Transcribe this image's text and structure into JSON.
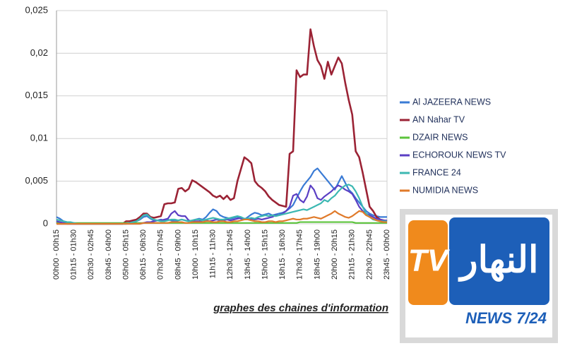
{
  "chart_data": {
    "type": "line",
    "caption": "graphes des chaines d'information",
    "categories": [
      "00h00 - 00h15",
      null,
      null,
      null,
      null,
      "01h15 - 01h30",
      null,
      null,
      null,
      null,
      "02h30 - 02h45",
      null,
      null,
      null,
      null,
      "03h45 - 04h00",
      null,
      null,
      null,
      null,
      "05h00 - 05h15",
      null,
      null,
      null,
      null,
      "06h15 - 06h30",
      null,
      null,
      null,
      null,
      "07h30 - 07h45",
      null,
      null,
      null,
      null,
      "08h45 - 09h00",
      null,
      null,
      null,
      null,
      "10h00 - 10h15",
      null,
      null,
      null,
      null,
      "11h15 - 11h30",
      null,
      null,
      null,
      null,
      "12h30 - 12h45",
      null,
      null,
      null,
      null,
      "13h45 - 14h00",
      null,
      null,
      null,
      null,
      "15h00 - 15h15",
      null,
      null,
      null,
      null,
      "16h15 - 16h30",
      null,
      null,
      null,
      null,
      "17h30 - 17h45",
      null,
      null,
      null,
      null,
      "18h45 - 19h00",
      null,
      null,
      null,
      null,
      "20h00 - 20h15",
      null,
      null,
      null,
      null,
      "21h15 - 21h30",
      null,
      null,
      null,
      null,
      "22h30 - 22h45",
      null,
      null,
      null,
      null,
      "23h45 - 00h00"
    ],
    "ylim": [
      0,
      0.025
    ],
    "yticks": [
      0,
      {
        "value": 0.005,
        "label": "0,005"
      },
      {
        "value": 0.01,
        "label": "0,01"
      },
      {
        "value": 0.015,
        "label": "0,015"
      },
      {
        "value": 0.02,
        "label": "0,02"
      },
      {
        "value": 0.025,
        "label": "0,025"
      }
    ],
    "grid": true,
    "legend": "right",
    "series": [
      {
        "name": "Al JAZEERA NEWS",
        "color": "#3a7bd5",
        "values": [
          0.0008,
          0.0006,
          0.0003,
          0.0002,
          0.0001,
          0,
          0,
          0,
          0,
          0,
          0,
          0,
          0,
          0,
          0,
          0,
          0,
          0,
          0,
          0,
          0,
          0.0001,
          0.0002,
          0.0003,
          0.0005,
          0.0008,
          0.0009,
          0.0006,
          0.0004,
          0.0004,
          0.0005,
          0.0004,
          0.0005,
          0.0004,
          0.0003,
          0.0004,
          0.0005,
          0.0004,
          0.0003,
          0.0004,
          0.0005,
          0.0006,
          0.0005,
          0.0008,
          0.0013,
          0.0017,
          0.0015,
          0.001,
          0.0008,
          0.0007,
          0.0006,
          0.0007,
          0.0008,
          0.0006,
          0.0005,
          0.0008,
          0.0011,
          0.0013,
          0.0012,
          0.001,
          0.0011,
          0.0012,
          0.001,
          0.0011,
          0.0012,
          0.0013,
          0.0015,
          0.0018,
          0.0022,
          0.003,
          0.0038,
          0.0045,
          0.005,
          0.0055,
          0.0062,
          0.0065,
          0.006,
          0.0055,
          0.005,
          0.0045,
          0.004,
          0.0048,
          0.0056,
          0.0048,
          0.004,
          0.0036,
          0.003,
          0.0025,
          0.002,
          0.0015,
          0.0012,
          0.001,
          0.0009,
          0.0008,
          0.0008,
          0.0008
        ]
      },
      {
        "name": "AN Nahar TV",
        "color": "#9b2335",
        "values": [
          0,
          0,
          0,
          0,
          0,
          0,
          0,
          0,
          0,
          0,
          0,
          0,
          0,
          0,
          0,
          0,
          0,
          0,
          0,
          0,
          0.0003,
          0.0003,
          0.0004,
          0.0005,
          0.0008,
          0.0012,
          0.0012,
          0.0008,
          0.0007,
          0.0008,
          0.0009,
          0.0023,
          0.0024,
          0.0024,
          0.0025,
          0.0041,
          0.0042,
          0.0038,
          0.0041,
          0.0051,
          0.0049,
          0.0046,
          0.0043,
          0.004,
          0.0037,
          0.0033,
          0.0031,
          0.0033,
          0.0029,
          0.0033,
          0.0028,
          0.003,
          0.005,
          0.0064,
          0.0078,
          0.0075,
          0.0071,
          0.005,
          0.0045,
          0.0042,
          0.0038,
          0.0032,
          0.0028,
          0.0025,
          0.0022,
          0.0021,
          0.002,
          0.0082,
          0.0085,
          0.018,
          0.0172,
          0.0175,
          0.0175,
          0.0228,
          0.0208,
          0.0192,
          0.0185,
          0.017,
          0.019,
          0.0175,
          0.0185,
          0.0195,
          0.0188,
          0.0165,
          0.0145,
          0.0128,
          0.0085,
          0.0078,
          0.006,
          0.004,
          0.002,
          0.0015,
          0.0008,
          0.0005,
          0.0004,
          0.0003
        ]
      },
      {
        "name": "DZAIR NEWS",
        "color": "#5cc43c",
        "values": [
          0.0001,
          0.0001,
          0.0001,
          0.0001,
          0.0001,
          0.0001,
          0.0001,
          0.0001,
          0.0001,
          0.0001,
          0.0001,
          0.0001,
          0.0001,
          0.0001,
          0.0001,
          0.0001,
          0.0001,
          0.0001,
          0.0001,
          0.0001,
          0.0001,
          0.0001,
          0.0001,
          0.0001,
          0.0001,
          0.0001,
          0.0001,
          0.0001,
          0.0001,
          0.0001,
          0.0001,
          0.0001,
          0.0001,
          0.0001,
          0.0001,
          0.0001,
          0.0001,
          0.0001,
          0.0001,
          0.0001,
          0.0001,
          0.0001,
          0.0001,
          0.0001,
          0.0001,
          0.0001,
          0.0001,
          0.0001,
          0.0001,
          0.0001,
          0.0001,
          0.0001,
          0.0001,
          0.0001,
          0.0001,
          0.0001,
          0.0001,
          0.0001,
          0.0001,
          0.0001,
          0.0001,
          0.0001,
          0.0001,
          0.0001,
          0.0001,
          0.0001,
          0.0001,
          0.0001,
          0.0001,
          0.0001,
          0.0002,
          0.0002,
          0.0002,
          0.0002,
          0.0002,
          0.0002,
          0.0002,
          0.0002,
          0.0002,
          0.0002,
          0.0002,
          0.0002,
          0.0002,
          0.0002,
          0.0002,
          0.0002,
          0.0001,
          0.0001,
          0.0001,
          0.0001,
          0.0001,
          0.0001,
          0.0001,
          0.0001,
          0.0001,
          0.0001
        ]
      },
      {
        "name": "ECHOROUK NEWS TV",
        "color": "#5b3fc4",
        "values": [
          0.0003,
          0.0002,
          0.0001,
          0,
          0,
          0,
          0,
          0,
          0,
          0,
          0,
          0,
          0,
          0,
          0,
          0,
          0,
          0,
          0,
          0,
          0,
          0,
          0,
          0,
          0,
          0.0001,
          0.0002,
          0.0002,
          0.0003,
          0.0004,
          0.0004,
          0.0005,
          0.0006,
          0.0012,
          0.0015,
          0.001,
          0.0009,
          0.0009,
          0.0004,
          0.0003,
          0.0003,
          0.0003,
          0.0004,
          0.0004,
          0.0003,
          0.0004,
          0.0005,
          0.0004,
          0.0004,
          0.0005,
          0.0004,
          0.0005,
          0.0006,
          0.0007,
          0.0006,
          0.0005,
          0.0006,
          0.0005,
          0.0006,
          0.0005,
          0.0006,
          0.0007,
          0.0008,
          0.001,
          0.001,
          0.0012,
          0.0015,
          0.002,
          0.0033,
          0.0035,
          0.0028,
          0.0025,
          0.0032,
          0.0045,
          0.004,
          0.003,
          0.0028,
          0.0032,
          0.0035,
          0.0038,
          0.0042,
          0.0045,
          0.0043,
          0.004,
          0.0038,
          0.0035,
          0.0028,
          0.002,
          0.0015,
          0.0012,
          0.001,
          0.0008,
          0.0006,
          0.0005,
          0.0004,
          0.0004
        ]
      },
      {
        "name": "FRANCE 24",
        "color": "#3cb8b2",
        "values": [
          0.0005,
          0.0004,
          0.0003,
          0.0002,
          0.0002,
          0.0001,
          0,
          0,
          0,
          0,
          0,
          0,
          0,
          0,
          0,
          0,
          0,
          0,
          0,
          0,
          0,
          0.0001,
          0.0002,
          0.0003,
          0.0006,
          0.001,
          0.0011,
          0.0007,
          0.0005,
          0.0004,
          0.0003,
          0.0003,
          0.0004,
          0.0005,
          0.0005,
          0.0004,
          0.0005,
          0.0004,
          0.0003,
          0.0004,
          0.0005,
          0.0005,
          0.0004,
          0.0005,
          0.0006,
          0.0007,
          0.0006,
          0.0005,
          0.0005,
          0.0006,
          0.0007,
          0.0008,
          0.0009,
          0.0008,
          0.0006,
          0.0006,
          0.0007,
          0.0006,
          0.0008,
          0.0009,
          0.001,
          0.0009,
          0.001,
          0.0009,
          0.001,
          0.0011,
          0.0012,
          0.0013,
          0.0014,
          0.0015,
          0.0016,
          0.0017,
          0.0016,
          0.0018,
          0.002,
          0.0022,
          0.0024,
          0.0028,
          0.0026,
          0.003,
          0.0033,
          0.0038,
          0.0042,
          0.0045,
          0.0046,
          0.0044,
          0.0038,
          0.003,
          0.002,
          0.0012,
          0.0008,
          0.0005,
          0.0004,
          0.0003,
          0.0003,
          0.0003
        ]
      },
      {
        "name": "NUMIDIA NEWS",
        "color": "#e07a2a",
        "values": [
          0,
          0,
          0,
          0,
          0,
          0,
          0,
          0,
          0,
          0,
          0,
          0,
          0,
          0,
          0,
          0,
          0,
          0,
          0,
          0,
          0,
          0,
          0,
          0,
          0,
          0.0001,
          0.0001,
          0.0001,
          0.0001,
          0.0001,
          0.0001,
          0.0001,
          0.0001,
          0.0002,
          0.0002,
          0.0002,
          0.0002,
          0.0001,
          0.0001,
          0.0002,
          0.0002,
          0.0002,
          0.0002,
          0.0003,
          0.0003,
          0.0002,
          0.0002,
          0.0003,
          0.0003,
          0.0002,
          0.0002,
          0.0003,
          0.0003,
          0.0004,
          0.0005,
          0.0005,
          0.0004,
          0.0003,
          0.0003,
          0.0002,
          0.0002,
          0.0003,
          0.0003,
          0.0002,
          0.0003,
          0.0003,
          0.0004,
          0.0005,
          0.0006,
          0.0005,
          0.0005,
          0.0006,
          0.0006,
          0.0007,
          0.0008,
          0.0007,
          0.0006,
          0.0008,
          0.001,
          0.0012,
          0.0015,
          0.0012,
          0.001,
          0.0008,
          0.0007,
          0.0009,
          0.0012,
          0.0015,
          0.0014,
          0.001,
          0.0008,
          0.0006,
          0.0004,
          0.0003,
          0.0002,
          0.0002
        ]
      }
    ]
  },
  "logo": {
    "tv": "TV",
    "arabic": "النهار",
    "news": "NEWS 7/24"
  }
}
